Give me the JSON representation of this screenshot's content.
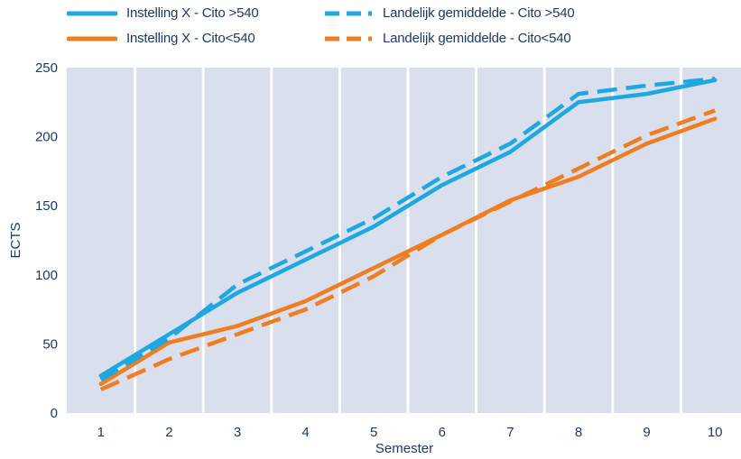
{
  "chart_data": {
    "type": "line",
    "title": "",
    "xlabel": "Semester",
    "ylabel": "ECTS",
    "categories": [
      "1",
      "2",
      "3",
      "4",
      "5",
      "6",
      "7",
      "8",
      "9",
      "10"
    ],
    "y_ticks": [
      "0",
      "50",
      "100",
      "150",
      "200",
      "250"
    ],
    "ylim": [
      0,
      250
    ],
    "grid": "vertical",
    "legend_position": "top",
    "background_color": "#d9dfec",
    "series": [
      {
        "name": "Instelling X - Cito >540",
        "color": "#1ea7e1",
        "style": "solid",
        "values": [
          27,
          57,
          87,
          111,
          135,
          165,
          189,
          225,
          231,
          241
        ]
      },
      {
        "name": "Instelling X - Cito<540",
        "color": "#ef7d22",
        "style": "solid",
        "values": [
          21,
          51,
          63,
          81,
          105,
          129,
          154,
          171,
          195,
          213
        ]
      },
      {
        "name": "Landelijk gemiddelde - Cito >540",
        "color": "#1ea7e1",
        "style": "dashed",
        "values": [
          24,
          54,
          93,
          117,
          141,
          171,
          195,
          231,
          237,
          242
        ]
      },
      {
        "name": "Landelijk gemiddelde - Cito<540",
        "color": "#ef7d22",
        "style": "dashed",
        "values": [
          17,
          39,
          57,
          75,
          99,
          129,
          153,
          177,
          201,
          219
        ]
      }
    ]
  }
}
